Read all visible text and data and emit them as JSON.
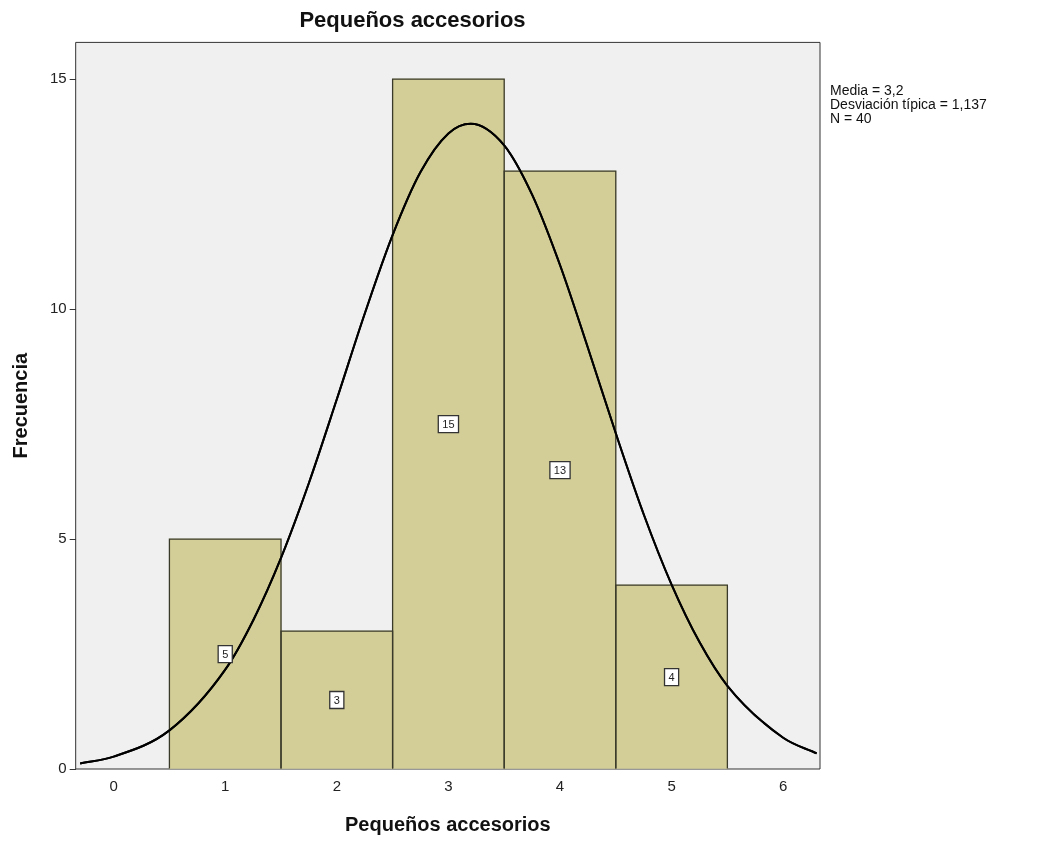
{
  "chart_data": {
    "type": "histogram",
    "title": "Pequeños accesorios",
    "xlabel": "Pequeños accesorios",
    "ylabel": "Frecuencia",
    "bins": [
      0.5,
      1.5,
      2.5,
      3.5,
      4.5,
      5.5
    ],
    "values": [
      5,
      3,
      15,
      13,
      4
    ],
    "color": "#d3ce97",
    "value_labels": [
      "5",
      "3",
      "15",
      "13",
      "4"
    ],
    "series": [
      {
        "type": "line",
        "color": "#000000",
        "x": [
          -0.3,
          0,
          0.5,
          1,
          1.25,
          1.5,
          1.75,
          2,
          2.25,
          2.5,
          2.75,
          3,
          3.2,
          3.5,
          3.75,
          4,
          4.25,
          4.5,
          4.75,
          5,
          5.25,
          5.5,
          6,
          6.3
        ],
        "values": [
          0.12,
          0.27,
          0.84,
          2.16,
          3.23,
          4.59,
          6.22,
          8.04,
          9.9,
          11.61,
          12.98,
          13.82,
          14.03,
          13.56,
          12.49,
          10.96,
          9.16,
          7.3,
          5.54,
          4.01,
          2.76,
          1.81,
          0.68,
          0.34
        ]
      }
    ],
    "xlim": [
      -0.34,
      6.33
    ],
    "ylim": [
      0,
      15.8
    ],
    "xticks": [
      0,
      1,
      2,
      3,
      4,
      5,
      6
    ],
    "yticks": [
      0,
      5,
      10,
      15
    ],
    "grid": false,
    "legend": false,
    "marker": "none",
    "line_style": "solid",
    "annotations": [
      "Media = 3,2",
      "Desviación típica = 1,137",
      "N = 40"
    ]
  }
}
